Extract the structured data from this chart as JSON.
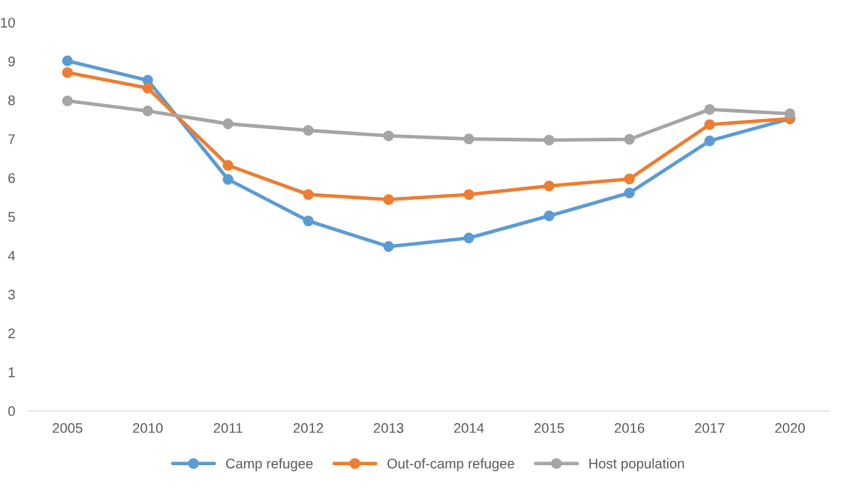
{
  "chart_data": {
    "type": "line",
    "categories": [
      "2005",
      "2010",
      "2011",
      "2012",
      "2013",
      "2014",
      "2015",
      "2016",
      "2017",
      "2020"
    ],
    "series": [
      {
        "name": "Camp refugee",
        "color": "#5b9bd5",
        "values": [
          9.01,
          8.51,
          5.96,
          4.89,
          4.23,
          4.45,
          5.02,
          5.61,
          6.95,
          7.52
        ]
      },
      {
        "name": "Out-of-camp refugee",
        "color": "#ed7d31",
        "values": [
          8.71,
          8.31,
          6.32,
          5.57,
          5.44,
          5.57,
          5.79,
          5.97,
          7.37,
          7.52
        ]
      },
      {
        "name": "Host population",
        "color": "#a5a5a5",
        "values": [
          7.98,
          7.72,
          7.39,
          7.22,
          7.08,
          7.0,
          6.97,
          6.99,
          7.76,
          7.65
        ]
      }
    ],
    "ylim": [
      0,
      10
    ],
    "yticks": [
      0,
      1,
      2,
      3,
      4,
      5,
      6,
      7,
      8,
      9,
      10
    ],
    "grid": false,
    "legend": "bottom",
    "marker": "circle",
    "line_style": "solid"
  }
}
